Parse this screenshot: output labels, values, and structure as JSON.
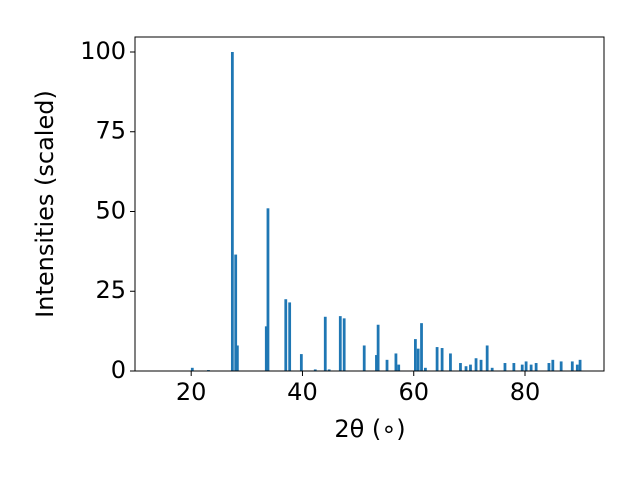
{
  "chart_data": {
    "type": "bar",
    "xlabel": "2θ (∘)",
    "ylabel": "Intensities (scaled)",
    "color": "#1f77b4",
    "bar_width": 0.5,
    "x": [
      20.2,
      23.1,
      27.4,
      28.0,
      28.3,
      33.5,
      33.8,
      37.0,
      37.7,
      39.8,
      42.3,
      44.1,
      44.8,
      46.8,
      47.5,
      51.1,
      53.3,
      53.6,
      55.2,
      56.8,
      57.3,
      60.3,
      60.8,
      61.4,
      62.1,
      64.2,
      65.1,
      66.6,
      68.4,
      69.4,
      70.2,
      71.2,
      72.1,
      73.2,
      74.1,
      76.4,
      78.0,
      79.5,
      80.2,
      81.1,
      82.0,
      84.3,
      85.0,
      86.5,
      88.5,
      89.4,
      89.9
    ],
    "values": [
      1,
      0.3,
      100,
      36.5,
      8,
      14,
      51,
      22.5,
      21.5,
      5.3,
      0.5,
      17,
      0.5,
      17.2,
      16.5,
      8,
      5,
      14.5,
      3.5,
      5.5,
      2,
      10,
      7,
      15,
      1,
      7.5,
      7.2,
      5.5,
      2.5,
      1.5,
      2,
      4,
      3.5,
      8,
      1,
      2.5,
      2.5,
      2,
      3,
      2,
      2.5,
      2.5,
      3.5,
      3,
      3,
      2,
      3.5
    ],
    "xlim": [
      9.9,
      94.2
    ],
    "ylim": [
      0,
      104.7
    ],
    "xticks": [
      20,
      40,
      60,
      80
    ],
    "yticks": [
      0,
      25,
      50,
      75,
      100
    ]
  }
}
